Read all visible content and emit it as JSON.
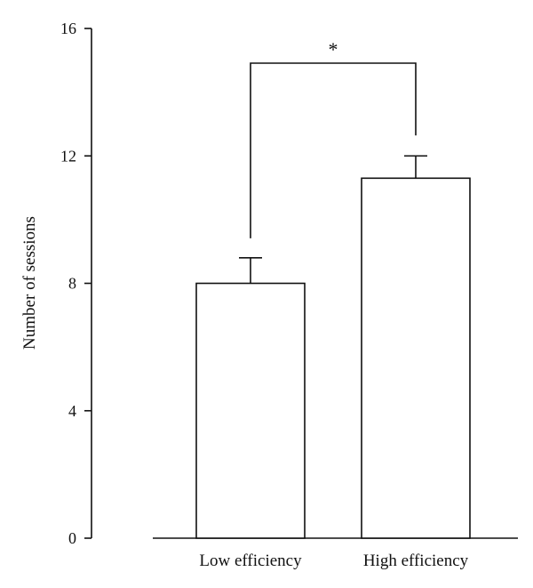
{
  "chart_data": {
    "type": "bar",
    "title": "",
    "xlabel": "",
    "ylabel": "Number of sessions",
    "ylim": [
      0,
      16
    ],
    "yticks": [
      0,
      4,
      8,
      12,
      16
    ],
    "ytick_labels": [
      "0",
      "4",
      "8",
      "12",
      "16"
    ],
    "categories": [
      "Low efficiency",
      "High efficiency"
    ],
    "values": [
      8.0,
      11.3
    ],
    "error_upper": [
      0.8,
      0.7
    ],
    "colors": {
      "bar_fill": "#ffffff",
      "stroke": "#111111"
    },
    "grid": false,
    "legend": "none",
    "annotations": [
      {
        "type": "significance-bracket",
        "between": [
          "Low efficiency",
          "High efficiency"
        ],
        "label": "*"
      }
    ]
  }
}
